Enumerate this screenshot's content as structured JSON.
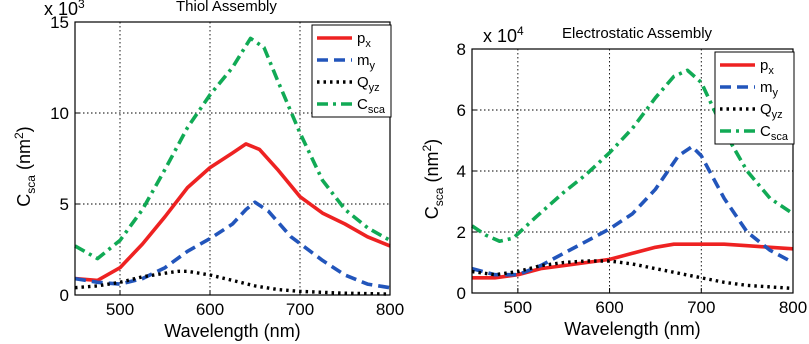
{
  "chart_data": [
    {
      "type": "line",
      "title": "Thiol Assembly",
      "multiplier_base": "x 10",
      "multiplier_exp": "3",
      "xlabel": "Wavelength (nm)",
      "ylabel_main": "C",
      "ylabel_sub": "sca",
      "ylabel_unit_open": " (nm",
      "ylabel_unit_exp": "2",
      "ylabel_unit_close": ")",
      "xlim": [
        450,
        800
      ],
      "ylim": [
        0,
        15
      ],
      "xticks": [
        500,
        600,
        700,
        800
      ],
      "yticks": [
        0,
        5,
        10,
        15
      ],
      "grid": true,
      "legend_position": "top-right",
      "series": [
        {
          "key": "px",
          "name_main": "p",
          "name_sub": "x",
          "color": "#ee2222",
          "dash": "solid",
          "x": [
            450,
            475,
            500,
            525,
            550,
            575,
            600,
            625,
            640,
            655,
            675,
            700,
            725,
            750,
            775,
            800
          ],
          "y": [
            0.9,
            0.8,
            1.5,
            2.8,
            4.3,
            5.9,
            7.0,
            7.8,
            8.3,
            8.0,
            6.9,
            5.4,
            4.5,
            3.9,
            3.2,
            2.7
          ]
        },
        {
          "key": "my",
          "name_main": "m",
          "name_sub": "y",
          "color": "#2255bb",
          "dash": "dashed",
          "x": [
            450,
            475,
            500,
            525,
            550,
            575,
            600,
            625,
            640,
            650,
            665,
            690,
            725,
            750,
            775,
            800
          ],
          "y": [
            0.9,
            0.7,
            0.6,
            0.9,
            1.5,
            2.4,
            3.1,
            3.9,
            4.7,
            5.1,
            4.6,
            3.2,
            1.9,
            1.1,
            0.6,
            0.4
          ]
        },
        {
          "key": "qyz",
          "name_main": "Q",
          "name_sub": "yz",
          "color": "#000000",
          "dash": "dotted",
          "x": [
            450,
            475,
            500,
            525,
            550,
            565,
            575,
            600,
            625,
            650,
            675,
            700,
            725,
            750,
            800
          ],
          "y": [
            0.4,
            0.5,
            0.7,
            1.0,
            1.2,
            1.3,
            1.3,
            1.1,
            0.8,
            0.5,
            0.3,
            0.2,
            0.15,
            0.1,
            0.05
          ]
        },
        {
          "key": "csca",
          "name_main": "C",
          "name_sub": "sca",
          "color": "#11aa55",
          "dash": "dashdot",
          "x": [
            450,
            475,
            500,
            525,
            550,
            575,
            600,
            625,
            645,
            660,
            675,
            700,
            725,
            750,
            775,
            800
          ],
          "y": [
            2.7,
            2.0,
            3.0,
            4.7,
            6.9,
            9.2,
            11.0,
            12.5,
            14.1,
            13.6,
            11.8,
            8.9,
            6.3,
            4.7,
            3.7,
            3.0
          ]
        }
      ]
    },
    {
      "type": "line",
      "title": "Electrostatic Assembly",
      "multiplier_base": "x 10",
      "multiplier_exp": "4",
      "xlabel": "Wavelength (nm)",
      "ylabel_main": "C",
      "ylabel_sub": "sca",
      "ylabel_unit_open": " (nm",
      "ylabel_unit_exp": "2",
      "ylabel_unit_close": ")",
      "xlim": [
        450,
        800
      ],
      "ylim": [
        0,
        8
      ],
      "xticks": [
        500,
        600,
        700,
        800
      ],
      "yticks": [
        0,
        2,
        4,
        6,
        8
      ],
      "grid": true,
      "legend_position": "top-right",
      "series": [
        {
          "key": "px",
          "name_main": "p",
          "name_sub": "x",
          "color": "#ee2222",
          "dash": "solid",
          "x": [
            450,
            475,
            500,
            525,
            550,
            575,
            600,
            625,
            650,
            670,
            700,
            725,
            750,
            775,
            800
          ],
          "y": [
            0.5,
            0.5,
            0.6,
            0.8,
            0.9,
            1.0,
            1.1,
            1.3,
            1.5,
            1.6,
            1.6,
            1.6,
            1.55,
            1.5,
            1.45
          ]
        },
        {
          "key": "my",
          "name_main": "m",
          "name_sub": "y",
          "color": "#2255bb",
          "dash": "dashed",
          "x": [
            450,
            475,
            500,
            525,
            550,
            575,
            600,
            625,
            650,
            675,
            690,
            700,
            725,
            750,
            775,
            800
          ],
          "y": [
            0.8,
            0.6,
            0.6,
            0.9,
            1.3,
            1.7,
            2.1,
            2.6,
            3.4,
            4.5,
            4.8,
            4.5,
            3.1,
            2.0,
            1.4,
            1.0
          ]
        },
        {
          "key": "qyz",
          "name_main": "Q",
          "name_sub": "yz",
          "color": "#000000",
          "dash": "dotted",
          "x": [
            450,
            475,
            500,
            525,
            550,
            575,
            600,
            625,
            650,
            675,
            700,
            725,
            750,
            800
          ],
          "y": [
            0.7,
            0.6,
            0.7,
            0.9,
            1.0,
            1.05,
            1.05,
            0.95,
            0.8,
            0.65,
            0.5,
            0.35,
            0.25,
            0.15
          ]
        },
        {
          "key": "csca",
          "name_main": "C",
          "name_sub": "sca",
          "color": "#11aa55",
          "dash": "dashdot",
          "x": [
            450,
            465,
            480,
            495,
            520,
            550,
            575,
            600,
            625,
            650,
            670,
            685,
            700,
            725,
            750,
            775,
            800
          ],
          "y": [
            2.2,
            1.9,
            1.7,
            1.8,
            2.5,
            3.3,
            3.9,
            4.6,
            5.4,
            6.4,
            7.1,
            7.3,
            6.9,
            5.3,
            4.0,
            3.1,
            2.6
          ]
        }
      ]
    }
  ]
}
